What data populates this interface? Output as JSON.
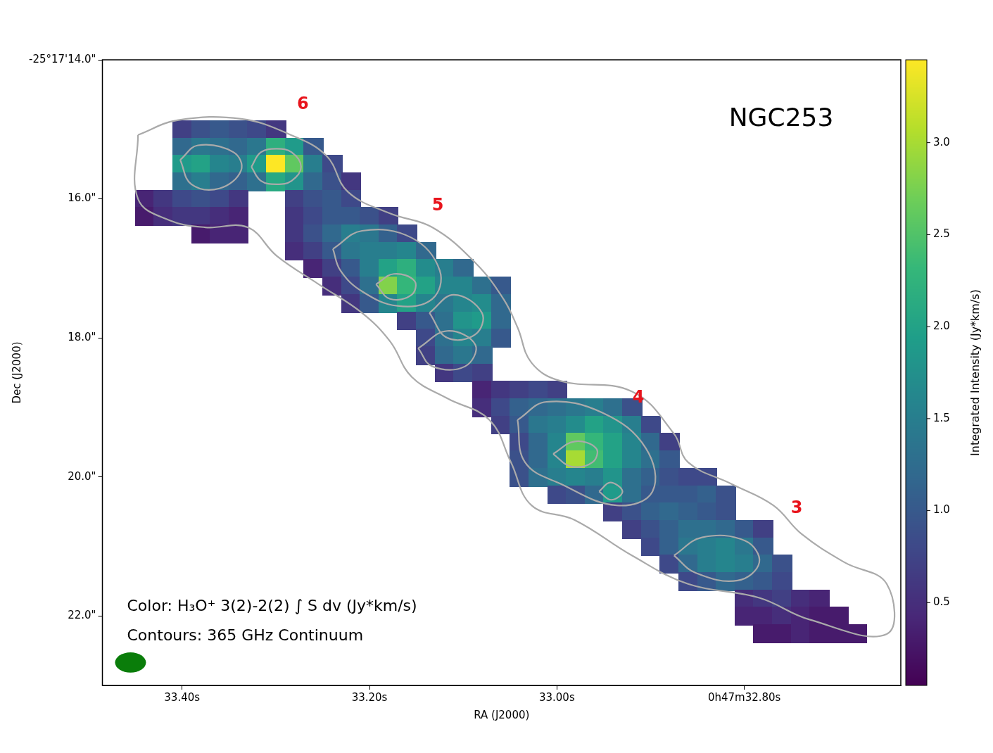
{
  "chart_data": {
    "type": "heatmap",
    "title": "NGC253",
    "x_label": "RA (J2000)",
    "y_label": "Dec (J2000)",
    "xlim": [
      33.485,
      32.633
    ],
    "ylim": [
      23.0,
      14.0
    ],
    "xticks": [
      {
        "value": 33.4,
        "label": "33.40s"
      },
      {
        "value": 33.2,
        "label": "33.20s"
      },
      {
        "value": 33.0,
        "label": "33.00s"
      },
      {
        "value": 32.8,
        "label": "0h47m32.80s"
      }
    ],
    "yticks": [
      {
        "value": 14,
        "label": "-25°17'14.0\""
      },
      {
        "value": 16,
        "label": "16.0\""
      },
      {
        "value": 18,
        "label": "18.0\""
      },
      {
        "value": 20,
        "label": "20.0\""
      },
      {
        "value": 22,
        "label": "22.0\""
      }
    ],
    "grid": false,
    "captions": [
      "Color: H₃O⁺ 3(2)-2(2) ∫ S dv (Jy*km/s)",
      "Contours: 365 GHz Continuum"
    ],
    "colorbar": {
      "label": "Integrated Intensity (Jy*km/s)",
      "range": [
        0.05,
        3.45
      ],
      "color": "viridis",
      "ticks": [
        0.5,
        {
          "value": 1,
          "label": "1.0"
        },
        1.5,
        {
          "value": 2,
          "label": "2.0"
        },
        2.5,
        {
          "value": 3,
          "label": "3.0"
        }
      ]
    },
    "cells": {
      "ra_step": 0.02,
      "dec_step": 0.25,
      "rows": [
        {
          "dec": 15.0,
          "ra_start": 33.4,
          "values": [
            0.7,
            0.9,
            1.0,
            0.9,
            0.8,
            0.6
          ]
        },
        {
          "dec": 15.25,
          "ra_start": 33.4,
          "values": [
            1.2,
            1.4,
            1.3,
            1.2,
            1.4,
            2.2,
            1.9,
            1.0
          ]
        },
        {
          "dec": 15.5,
          "ra_start": 33.4,
          "values": [
            1.9,
            2.0,
            1.6,
            1.5,
            1.9,
            3.45,
            2.6,
            1.5,
            0.8
          ]
        },
        {
          "dec": 15.75,
          "ra_start": 33.4,
          "values": [
            1.3,
            1.5,
            1.2,
            1.1,
            1.3,
            2.1,
            1.8,
            1.2,
            0.9,
            0.6
          ]
        },
        {
          "dec": 16.0,
          "ra_start": 33.44,
          "values": [
            0.4,
            0.6,
            0.8,
            0.9,
            0.8,
            0.6,
            null,
            null,
            0.7,
            0.9,
            1.0,
            0.8
          ]
        },
        {
          "dec": 16.25,
          "ra_start": 33.44,
          "values": [
            0.3,
            0.5,
            0.6,
            0.6,
            0.5,
            0.4,
            null,
            null,
            0.6,
            0.8,
            1.0,
            1.0,
            0.9,
            0.7
          ]
        },
        {
          "dec": 16.5,
          "ra_start": 33.38,
          "values": [
            0.3,
            0.4,
            0.4,
            null,
            null,
            0.6,
            0.9,
            1.2,
            1.5,
            1.4,
            1.1,
            0.8
          ]
        },
        {
          "dec": 16.75,
          "ra_start": 33.28,
          "values": [
            0.5,
            0.7,
            1.0,
            1.4,
            1.5,
            1.5,
            1.6,
            1.2
          ]
        },
        {
          "dec": 17.0,
          "ra_start": 33.26,
          "values": [
            0.4,
            0.7,
            1.0,
            1.5,
            2.0,
            2.2,
            1.7,
            1.5,
            1.2
          ]
        },
        {
          "dec": 17.25,
          "ra_start": 33.24,
          "values": [
            0.5,
            0.8,
            1.3,
            2.8,
            2.3,
            2.0,
            1.6,
            1.6,
            1.3,
            1.0
          ]
        },
        {
          "dec": 17.5,
          "ra_start": 33.22,
          "values": [
            0.6,
            1.0,
            1.6,
            2.0,
            1.6,
            1.4,
            1.6,
            1.7,
            1.2
          ]
        },
        {
          "dec": 17.75,
          "ra_start": 33.16,
          "values": [
            0.7,
            1.0,
            1.3,
            1.8,
            1.9,
            1.2
          ]
        },
        {
          "dec": 18.0,
          "ra_start": 33.14,
          "values": [
            0.8,
            1.3,
            1.6,
            1.5,
            1.0
          ]
        },
        {
          "dec": 18.25,
          "ra_start": 33.14,
          "values": [
            0.7,
            1.2,
            1.4,
            1.2
          ]
        },
        {
          "dec": 18.5,
          "ra_start": 33.12,
          "values": [
            0.6,
            0.8,
            0.7
          ]
        },
        {
          "dec": 18.75,
          "ra_start": 33.08,
          "values": [
            0.4,
            0.6,
            0.7,
            0.8,
            0.7
          ]
        },
        {
          "dec": 19.0,
          "ra_start": 33.08,
          "values": [
            0.5,
            0.8,
            1.1,
            1.2,
            1.3,
            1.4,
            1.5,
            1.3,
            0.9
          ]
        },
        {
          "dec": 19.25,
          "ra_start": 33.06,
          "values": [
            0.7,
            1.0,
            1.4,
            1.5,
            1.7,
            2.0,
            1.8,
            1.5,
            0.8
          ]
        },
        {
          "dec": 19.5,
          "ra_start": 33.04,
          "values": [
            0.8,
            1.2,
            1.6,
            2.6,
            2.3,
            2.0,
            1.6,
            1.2,
            0.7
          ]
        },
        {
          "dec": 19.75,
          "ra_start": 33.04,
          "values": [
            0.9,
            1.2,
            1.6,
            3.0,
            2.4,
            2.0,
            1.6,
            1.3,
            1.0
          ]
        },
        {
          "dec": 20.0,
          "ra_start": 33.04,
          "values": [
            0.9,
            1.3,
            1.5,
            1.6,
            1.5,
            1.8,
            1.3,
            1.1,
            0.9,
            0.8,
            0.8
          ]
        },
        {
          "dec": 20.25,
          "ra_start": 33.0,
          "values": [
            0.8,
            0.9,
            1.2,
            1.9,
            1.3,
            1.0,
            1.0,
            1.0,
            1.1,
            0.9
          ]
        },
        {
          "dec": 20.5,
          "ra_start": 32.94,
          "values": [
            0.7,
            0.9,
            1.1,
            1.2,
            1.1,
            1.0,
            0.9
          ]
        },
        {
          "dec": 20.75,
          "ra_start": 32.92,
          "values": [
            0.7,
            0.9,
            1.1,
            1.3,
            1.3,
            1.2,
            1.0,
            0.7
          ]
        },
        {
          "dec": 21.0,
          "ra_start": 32.9,
          "values": [
            0.8,
            1.1,
            1.4,
            1.5,
            1.6,
            1.4,
            1.0
          ]
        },
        {
          "dec": 21.25,
          "ra_start": 32.88,
          "values": [
            0.8,
            1.2,
            1.5,
            1.6,
            1.5,
            1.2,
            0.9
          ]
        },
        {
          "dec": 21.5,
          "ra_start": 32.86,
          "values": [
            0.8,
            1.0,
            1.2,
            1.1,
            1.0,
            0.8
          ]
        },
        {
          "dec": 21.75,
          "ra_start": 32.8,
          "values": [
            0.5,
            0.6,
            0.7,
            0.5,
            0.4
          ]
        },
        {
          "dec": 22.0,
          "ra_start": 32.8,
          "values": [
            0.4,
            0.4,
            0.5,
            0.4,
            0.3,
            0.3
          ]
        },
        {
          "dec": 22.25,
          "ra_start": 32.78,
          "values": [
            0.3,
            0.3,
            0.4,
            0.3,
            0.3,
            0.3
          ]
        }
      ]
    },
    "contours": {
      "color": "#aaaaaa",
      "lines": [
        [
          [
            33.447,
            15.08
          ],
          [
            33.405,
            14.87
          ],
          [
            33.337,
            14.85
          ],
          [
            33.284,
            15.08
          ],
          [
            33.246,
            15.38
          ],
          [
            33.223,
            15.9
          ],
          [
            33.178,
            16.21
          ],
          [
            33.133,
            16.41
          ],
          [
            33.087,
            16.92
          ],
          [
            33.057,
            17.44
          ],
          [
            33.042,
            17.85
          ],
          [
            33.027,
            18.36
          ],
          [
            32.996,
            18.62
          ],
          [
            32.92,
            18.77
          ],
          [
            32.875,
            19.38
          ],
          [
            32.86,
            19.79
          ],
          [
            32.814,
            20.1
          ],
          [
            32.769,
            20.41
          ],
          [
            32.739,
            20.82
          ],
          [
            32.693,
            21.23
          ],
          [
            32.648,
            21.54
          ],
          [
            32.648,
            22.26
          ],
          [
            32.731,
            22.05
          ],
          [
            32.784,
            21.74
          ],
          [
            32.86,
            21.54
          ],
          [
            32.92,
            21.13
          ],
          [
            32.981,
            20.62
          ],
          [
            33.027,
            20.41
          ],
          [
            33.049,
            19.79
          ],
          [
            33.072,
            19.18
          ],
          [
            33.117,
            18.87
          ],
          [
            33.155,
            18.56
          ],
          [
            33.178,
            18.05
          ],
          [
            33.208,
            17.64
          ],
          [
            33.254,
            17.23
          ],
          [
            33.299,
            16.82
          ],
          [
            33.33,
            16.41
          ],
          [
            33.375,
            16.41
          ],
          [
            33.413,
            16.31
          ],
          [
            33.447,
            16.0
          ]
        ],
        [
          [
            33.326,
            15.54
          ],
          [
            33.316,
            15.33
          ],
          [
            33.299,
            15.28
          ],
          [
            33.283,
            15.33
          ],
          [
            33.273,
            15.54
          ],
          [
            33.283,
            15.74
          ],
          [
            33.299,
            15.79
          ],
          [
            33.316,
            15.74
          ]
        ],
        [
          [
            33.402,
            15.44
          ],
          [
            33.383,
            15.23
          ],
          [
            33.345,
            15.33
          ],
          [
            33.337,
            15.59
          ],
          [
            33.36,
            15.85
          ],
          [
            33.39,
            15.79
          ]
        ],
        [
          [
            33.239,
            16.72
          ],
          [
            33.208,
            16.46
          ],
          [
            33.155,
            16.56
          ],
          [
            33.125,
            17.03
          ],
          [
            33.133,
            17.44
          ],
          [
            33.17,
            17.54
          ],
          [
            33.208,
            17.33
          ],
          [
            33.231,
            17.03
          ]
        ],
        [
          [
            33.193,
            17.23
          ],
          [
            33.174,
            17.08
          ],
          [
            33.152,
            17.18
          ],
          [
            33.155,
            17.38
          ],
          [
            33.178,
            17.44
          ]
        ],
        [
          [
            33.136,
            17.64
          ],
          [
            33.11,
            17.38
          ],
          [
            33.08,
            17.64
          ],
          [
            33.087,
            17.95
          ],
          [
            33.117,
            18.0
          ]
        ],
        [
          [
            33.148,
            18.15
          ],
          [
            33.117,
            17.9
          ],
          [
            33.087,
            18.1
          ],
          [
            33.098,
            18.41
          ],
          [
            33.133,
            18.41
          ]
        ],
        [
          [
            33.042,
            19.18
          ],
          [
            33.011,
            18.92
          ],
          [
            32.951,
            19.08
          ],
          [
            32.905,
            19.59
          ],
          [
            32.898,
            20.21
          ],
          [
            32.936,
            20.41
          ],
          [
            32.996,
            20.1
          ],
          [
            33.034,
            19.79
          ]
        ],
        [
          [
            33.004,
            19.67
          ],
          [
            32.981,
            19.49
          ],
          [
            32.958,
            19.59
          ],
          [
            32.962,
            19.79
          ],
          [
            32.985,
            19.85
          ]
        ],
        [
          [
            32.955,
            20.21
          ],
          [
            32.943,
            20.08
          ],
          [
            32.93,
            20.21
          ],
          [
            32.942,
            20.33
          ]
        ],
        [
          [
            32.875,
            21.13
          ],
          [
            32.845,
            20.87
          ],
          [
            32.799,
            20.92
          ],
          [
            32.784,
            21.23
          ],
          [
            32.807,
            21.49
          ],
          [
            32.852,
            21.38
          ]
        ]
      ]
    },
    "annotations": [
      {
        "text": "6",
        "ra": 33.271,
        "dec": 14.65,
        "color": "red"
      },
      {
        "text": "5",
        "ra": 33.127,
        "dec": 16.1,
        "color": "red"
      },
      {
        "text": "4",
        "ra": 32.913,
        "dec": 18.87,
        "color": "red"
      },
      {
        "text": "3",
        "ra": 32.744,
        "dec": 20.46,
        "color": "red"
      }
    ],
    "beam": {
      "ra": 33.455,
      "dec": 22.67,
      "width_ra": 0.033,
      "height_dec": 0.29,
      "color": "green"
    }
  }
}
